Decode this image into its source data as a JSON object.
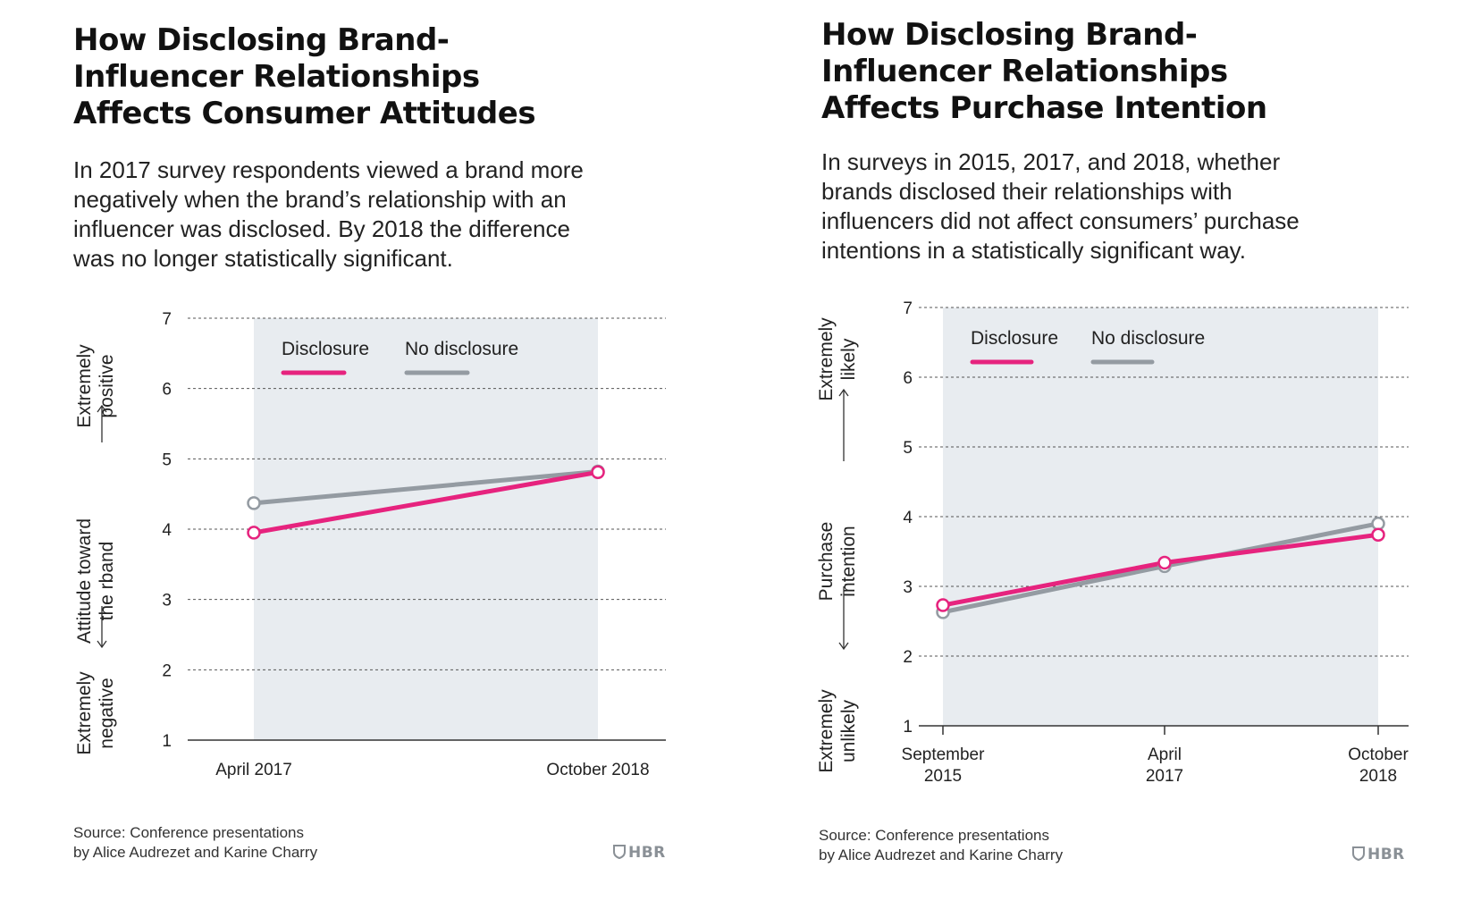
{
  "charts": [
    {
      "title_lines": [
        "How Disclosing Brand-",
        "Influencer Relationships",
        "Affects Consumer Attitudes"
      ],
      "subtitle_lines": [
        "In 2017 survey respondents viewed a brand more",
        "negatively when the brand’s relationship with an",
        "influencer was disclosed. By 2018 the difference",
        "was no longer statistically significant."
      ],
      "ylabel": {
        "top": [
          "Extremely",
          "positive"
        ],
        "middle": [
          "Attitude toward",
          "the rband"
        ],
        "bottom": [
          "Extremely",
          "negative"
        ]
      },
      "source_lines": [
        "Source: Conference presentations",
        "by Alice Audrezet and Karine Charry"
      ],
      "logo": "HBR"
    },
    {
      "title_lines": [
        "How Disclosing Brand-",
        "Influencer Relationships",
        "Affects Purchase Intention"
      ],
      "subtitle_lines": [
        "In surveys in 2015, 2017, and 2018, whether",
        "brands disclosed their relationships with",
        "influencers did not affect consumers’ purchase",
        "intentions in a statistically significant way."
      ],
      "ylabel": {
        "top": [
          "Extremely",
          "likely"
        ],
        "middle": [
          "Purchase",
          "intention"
        ],
        "bottom": [
          "Extremely",
          "unlikely"
        ]
      },
      "source_lines": [
        "Source: Conference presentations",
        "by Alice Audrezet and Karine Charry"
      ],
      "logo": "HBR"
    }
  ],
  "colors": {
    "disclosure": "#e6237e",
    "no_disclosure": "#949ba2",
    "shade": "#e8ecf0",
    "grid": "#555555",
    "axis": "#333333",
    "text": "#222222"
  },
  "chart_data": [
    {
      "type": "line",
      "x": [
        "April 2017",
        "October 2018"
      ],
      "series": [
        {
          "name": "Disclosure",
          "values": [
            3.95,
            4.81
          ]
        },
        {
          "name": "No disclosure",
          "values": [
            4.37,
            4.82
          ]
        }
      ],
      "ylim": [
        1,
        7
      ],
      "yticks": [
        1,
        2,
        3,
        4,
        5,
        6,
        7
      ],
      "grid": true,
      "legend": "top-left inside"
    },
    {
      "type": "line",
      "x": [
        "September 2015",
        "April 2017",
        "October 2018"
      ],
      "x_tick_lines": [
        [
          "September",
          "2015"
        ],
        [
          "April",
          "2017"
        ],
        [
          "October",
          "2018"
        ]
      ],
      "series": [
        {
          "name": "Disclosure",
          "values": [
            2.73,
            3.34,
            3.74
          ]
        },
        {
          "name": "No disclosure",
          "values": [
            2.63,
            3.29,
            3.9
          ]
        }
      ],
      "ylim": [
        1,
        7
      ],
      "yticks": [
        1,
        2,
        3,
        4,
        5,
        6,
        7
      ],
      "grid": true,
      "legend": "top-left inside"
    }
  ]
}
